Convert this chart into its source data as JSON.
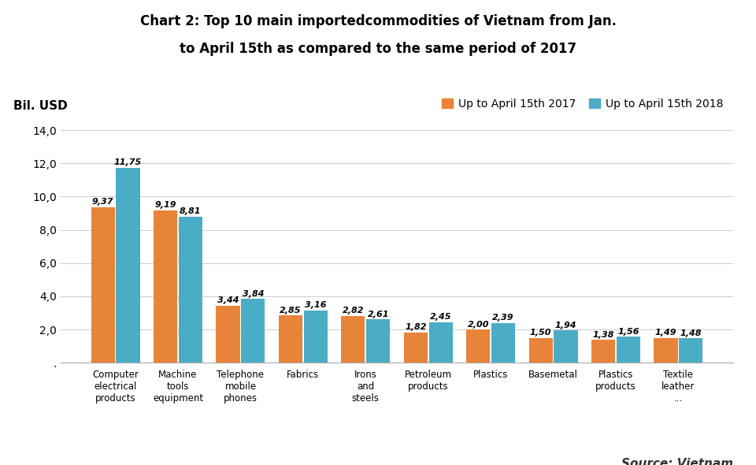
{
  "title_line1": "Chart 2: Top 10 main importedcommodities of Vietnam from Jan.",
  "title_line2": "to April 15th as compared to the same period of 2017",
  "bil_usd_label": "Bil. USD",
  "categories": [
    "Computer\nelectrical\nproducts",
    "Machine\ntools\nequipment",
    "Telephone\nmobile\nphones",
    "Fabrics",
    "Irons\nand\nsteels",
    "Petroleum\nproducts",
    "Plastics",
    "Basemetal",
    "Plastics\nproducts",
    "Textile\nleather\n..."
  ],
  "values_2017": [
    9.37,
    9.19,
    3.44,
    2.85,
    2.82,
    1.82,
    2.0,
    1.5,
    1.38,
    1.49
  ],
  "values_2018": [
    11.75,
    8.81,
    3.84,
    3.16,
    2.61,
    2.45,
    2.39,
    1.94,
    1.56,
    1.48
  ],
  "labels_2017": [
    "9,37",
    "9,19",
    "3,44",
    "2,85",
    "2,82",
    "1,82",
    "2,00",
    "1,50",
    "1,38",
    "1,49"
  ],
  "labels_2018": [
    "11,75",
    "8,81",
    "3,84",
    "3,16",
    "2,61",
    "2,45",
    "2,39",
    "1,94",
    "1,56",
    "1,48"
  ],
  "color_2017": "#E8833A",
  "color_2018": "#4BACC6",
  "legend_2017": "Up to April 15th 2017",
  "legend_2018": "Up to April 15th 2018",
  "ylim": [
    0,
    14.0
  ],
  "yticks": [
    0,
    2.0,
    4.0,
    6.0,
    8.0,
    10.0,
    12.0,
    14.0
  ],
  "ytick_labels": [
    ".",
    "2,0",
    "4,0",
    "6,0",
    "8,0",
    "10,0",
    "12,0",
    "14,0"
  ],
  "source_text": "Source: Vietnam\nCustoms",
  "background_color": "#FFFFFF"
}
